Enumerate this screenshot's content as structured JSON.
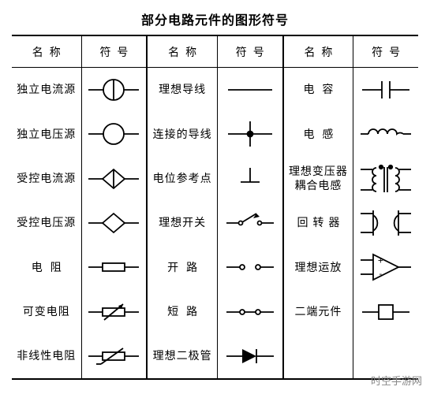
{
  "title": "部分电路元件的图形符号",
  "headers": {
    "name": "名称",
    "symbol": "符号"
  },
  "watermark": "时空手游网",
  "stroke": "#000000",
  "groups": [
    {
      "rows": [
        {
          "name": "独立电流源",
          "symbol": "current-source"
        },
        {
          "name": "独立电压源",
          "symbol": "voltage-source"
        },
        {
          "name": "受控电流源",
          "symbol": "dep-current-source"
        },
        {
          "name": "受控电压源",
          "symbol": "dep-voltage-source"
        },
        {
          "name": "电阻",
          "spaced": "spaced",
          "symbol": "resistor"
        },
        {
          "name": "可变电阻",
          "symbol": "var-resistor"
        },
        {
          "name": "非线性电阻",
          "symbol": "nonlinear-resistor"
        }
      ]
    },
    {
      "rows": [
        {
          "name": "理想导线",
          "symbol": "ideal-wire"
        },
        {
          "name": "连接的导线",
          "symbol": "connected-wire"
        },
        {
          "name": "电位参考点",
          "symbol": "ground"
        },
        {
          "name": "理想开关",
          "symbol": "ideal-switch"
        },
        {
          "name": "开路",
          "spaced": "spaced",
          "symbol": "open-circuit"
        },
        {
          "name": "短路",
          "spaced": "spaced",
          "symbol": "short-circuit"
        },
        {
          "name": "理想二极管",
          "symbol": "diode"
        }
      ]
    },
    {
      "rows": [
        {
          "name": "电容",
          "spaced": "spaced",
          "symbol": "capacitor"
        },
        {
          "name": "电感",
          "spaced": "spaced",
          "symbol": "inductor"
        },
        {
          "name": "理想变压器\n耦合电感",
          "symbol": "transformer"
        },
        {
          "name": "回转器",
          "spaced": "spaced2",
          "symbol": "gyrator"
        },
        {
          "name": "理想运放",
          "symbol": "opamp"
        },
        {
          "name": "二端元件",
          "symbol": "two-terminal"
        },
        {
          "name": "",
          "symbol": ""
        }
      ]
    }
  ]
}
